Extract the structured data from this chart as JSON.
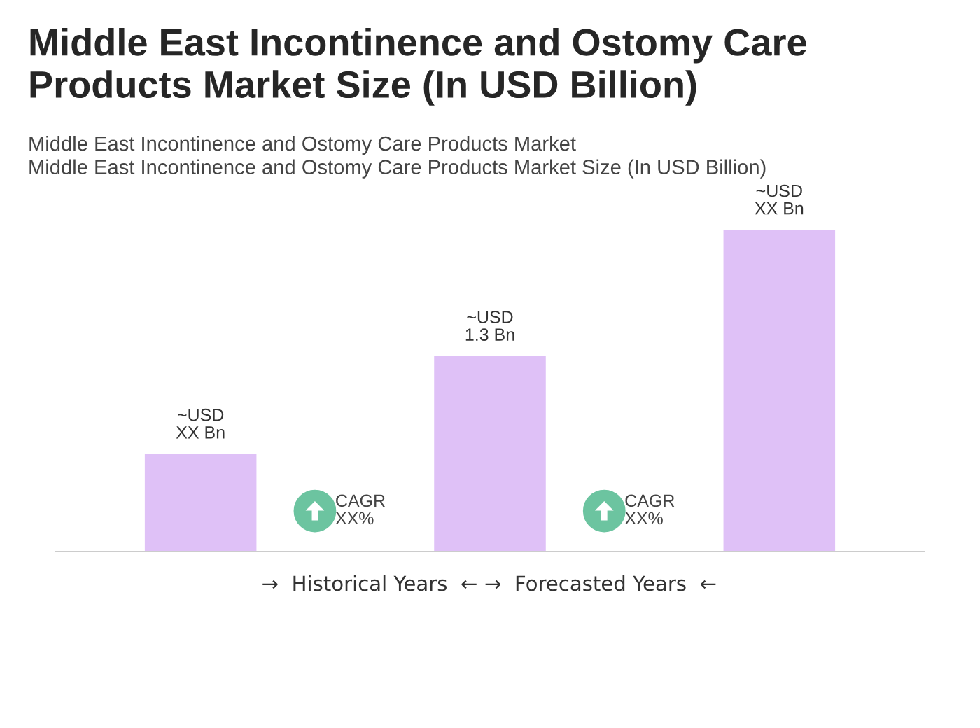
{
  "chart_data": {
    "type": "bar",
    "title": "Middle East Incontinence and Ostomy Care Products Market Size (In USD Billion)",
    "subtitle": "Middle East Incontinence and Ostomy Care Products Market\nMiddle East Incontinence and Ostomy Care Products Market Size (In USD Billion)",
    "categories": [
      null,
      null,
      null
    ],
    "values": [
      0.65,
      1.3,
      2.14
    ],
    "value_labels": [
      "~USD\nXX Bn",
      "~USD\n1.3 Bn",
      "~USD\nXX Bn"
    ],
    "color": "#dfc1f7",
    "annotations": [
      "CAGR\nXX%",
      "CAGR\nXX%",
      "→  Historical Years  ←",
      "→  Forecasted Years  ←"
    ],
    "grid": false,
    "legend": false
  }
}
